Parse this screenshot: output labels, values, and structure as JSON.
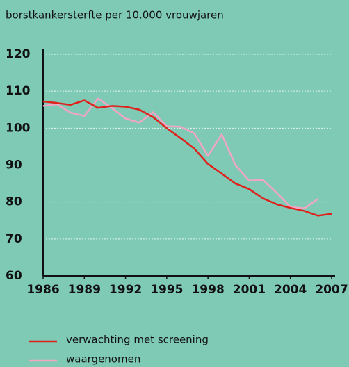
{
  "chart_data": {
    "type": "line",
    "title": "borstkankersterfte per 10.000 vrouwjaren",
    "x": [
      1986,
      1987,
      1988,
      1989,
      1990,
      1991,
      1992,
      1993,
      1994,
      1995,
      1996,
      1997,
      1998,
      1999,
      2000,
      2001,
      2002,
      2003,
      2004,
      2005,
      2006,
      2007
    ],
    "series": [
      {
        "name": "verwachting met screening",
        "color": "#e0201b",
        "values": [
          107.2,
          106.8,
          106.3,
          107.5,
          105.5,
          106.0,
          105.8,
          105.0,
          103.0,
          100.0,
          97.3,
          94.5,
          90.3,
          87.7,
          85.0,
          83.5,
          81.0,
          79.4,
          78.4,
          77.6,
          76.3,
          76.8
        ]
      },
      {
        "name": "waargenomen",
        "color": "#f0a6c4",
        "values": [
          106.0,
          106.5,
          104.2,
          103.3,
          108.0,
          105.5,
          102.6,
          101.5,
          104.3,
          100.5,
          100.4,
          98.6,
          92.5,
          98.3,
          90.0,
          85.8,
          86.0,
          82.5,
          78.7,
          78.3,
          80.8,
          null
        ]
      }
    ],
    "xlim": [
      1986,
      2007
    ],
    "xticks": [
      1986,
      1989,
      1992,
      1995,
      1998,
      2001,
      2004,
      2007
    ],
    "ylim": [
      60,
      120
    ],
    "yticks": [
      60,
      70,
      80,
      90,
      100,
      110,
      120
    ],
    "grid": true,
    "legend": "bottom"
  }
}
